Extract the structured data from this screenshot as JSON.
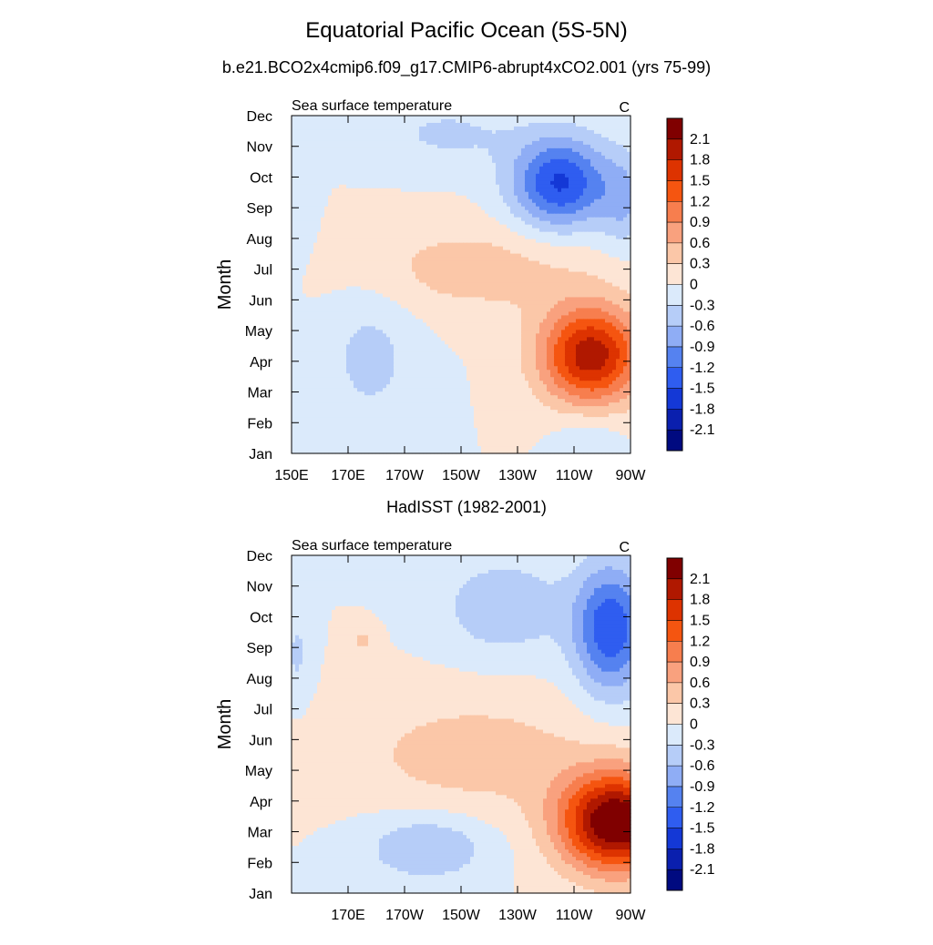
{
  "title": "Equatorial Pacific Ocean (5S-5N)",
  "colorbar": {
    "labels": [
      "2.1",
      "1.8",
      "1.5",
      "1.2",
      "0.9",
      "0.6",
      "0.3",
      "0",
      "-0.3",
      "-0.6",
      "-0.9",
      "-1.2",
      "-1.5",
      "-1.8",
      "-2.1"
    ],
    "colors": [
      "#800000",
      "#b01800",
      "#dd3300",
      "#f55510",
      "#f77e4e",
      "#f9a17e",
      "#fbc7a8",
      "#fde5d5",
      "#dbeafb",
      "#b6cdf8",
      "#8fadf5",
      "#5582f0",
      "#2f5df0",
      "#1438d6",
      "#0a1fae",
      "#000a80"
    ]
  },
  "chart_data": [
    {
      "type": "heatmap",
      "subtitle": "b.e21.BCO2x4cmip6.f09_g17.CMIP6-abrupt4xCO2.001 (yrs 75-99)",
      "left_label": "Sea surface temperature",
      "right_label": "C",
      "ylabel": "Month",
      "xlim": [
        150,
        270
      ],
      "ylim": [
        0,
        11
      ],
      "xticks": [
        {
          "value": 150,
          "label": "150E"
        },
        {
          "value": 170,
          "label": "170E"
        },
        {
          "value": 190,
          "label": "170W"
        },
        {
          "value": 210,
          "label": "150W"
        },
        {
          "value": 230,
          "label": "130W"
        },
        {
          "value": 250,
          "label": "110W"
        },
        {
          "value": 270,
          "label": "90W"
        }
      ],
      "yticks": [
        "Jan",
        "Feb",
        "Mar",
        "Apr",
        "May",
        "Jun",
        "Jul",
        "Aug",
        "Sep",
        "Oct",
        "Nov",
        "Dec"
      ],
      "blobs": [
        {
          "lon": 256,
          "month": 3.2,
          "sx": 18,
          "sy": 1.6,
          "amp": 2.0
        },
        {
          "lon": 215,
          "month": 6.0,
          "sx": 45,
          "sy": 1.5,
          "amp": 0.45
        },
        {
          "lon": 245,
          "month": 8.8,
          "sx": 17,
          "sy": 1.5,
          "amp": -1.55
        },
        {
          "lon": 268,
          "month": 8.2,
          "sx": 9,
          "sy": 1.6,
          "amp": -0.55
        },
        {
          "lon": 205,
          "month": 10.4,
          "sx": 26,
          "sy": 1.1,
          "amp": -0.35
        },
        {
          "lon": 178,
          "month": 3.2,
          "sx": 17,
          "sy": 2.4,
          "amp": -0.4
        },
        {
          "lon": 152,
          "month": 8.5,
          "sx": 6,
          "sy": 2.2,
          "amp": -0.3
        },
        {
          "lon": 255,
          "month": 0.5,
          "sx": 12,
          "sy": 0.9,
          "amp": -0.28
        }
      ]
    },
    {
      "type": "heatmap",
      "subtitle": "HadISST (1982-2001)",
      "left_label": "Sea surface temperature",
      "right_label": "C",
      "ylabel": "Month",
      "xlim": [
        150,
        270
      ],
      "ylim": [
        0,
        11
      ],
      "xticks": [
        {
          "value": 150,
          "label": ""
        },
        {
          "value": 170,
          "label": "170E"
        },
        {
          "value": 190,
          "label": "170W"
        },
        {
          "value": 210,
          "label": "150W"
        },
        {
          "value": 230,
          "label": "130W"
        },
        {
          "value": 250,
          "label": "110W"
        },
        {
          "value": 270,
          "label": "90W"
        }
      ],
      "yticks": [
        "Jan",
        "Feb",
        "Mar",
        "Apr",
        "May",
        "Jun",
        "Jul",
        "Aug",
        "Sep",
        "Oct",
        "Nov",
        "Dec"
      ],
      "blobs": [
        {
          "lon": 265,
          "month": 2.3,
          "sx": 20,
          "sy": 1.6,
          "amp": 2.5
        },
        {
          "lon": 215,
          "month": 4.5,
          "sx": 45,
          "sy": 2.0,
          "amp": 0.45
        },
        {
          "lon": 263,
          "month": 8.6,
          "sx": 13,
          "sy": 2.1,
          "amp": -1.45
        },
        {
          "lon": 225,
          "month": 9.3,
          "sx": 22,
          "sy": 1.6,
          "amp": -0.55
        },
        {
          "lon": 198,
          "month": 1.5,
          "sx": 22,
          "sy": 1.1,
          "amp": -0.62
        },
        {
          "lon": 152,
          "month": 7.8,
          "sx": 5,
          "sy": 1.5,
          "amp": -0.35
        },
        {
          "lon": 175,
          "month": 8.2,
          "sx": 5,
          "sy": 0.5,
          "amp": 0.35
        }
      ]
    }
  ]
}
